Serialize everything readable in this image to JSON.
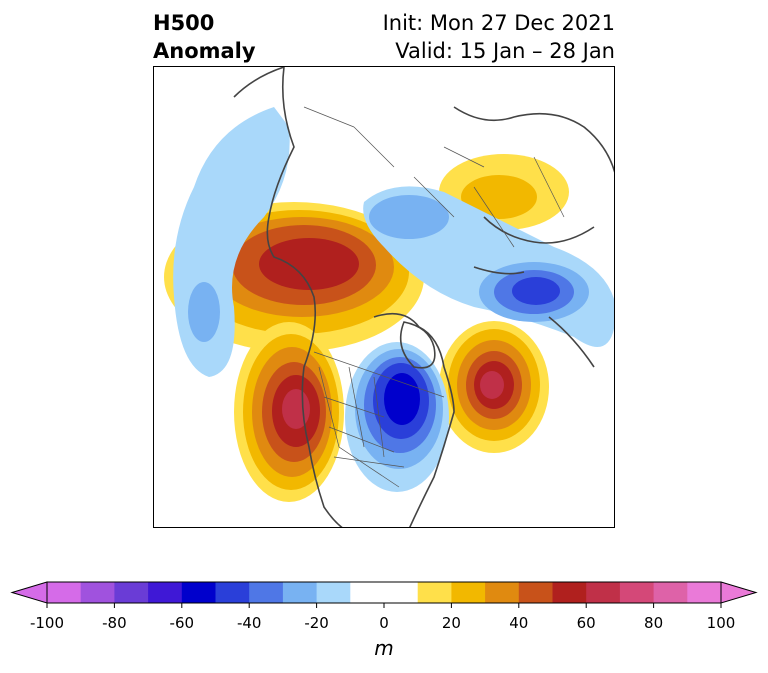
{
  "title": {
    "left_line1": "H500",
    "left_line2": "Anomaly",
    "right_line1": "Init: Mon 27 Dec 2021",
    "right_line2": "Valid: 15 Jan – 28 Jan"
  },
  "colorbar": {
    "unit": "m",
    "ticks": [
      "-100",
      "-80",
      "-60",
      "-40",
      "-20",
      "0",
      "20",
      "40",
      "60",
      "80",
      "100"
    ],
    "range": [
      -100,
      100
    ],
    "step": 10,
    "colors": [
      "#d56be8",
      "#a052de",
      "#6a3cd6",
      "#3f18d6",
      "#0000cc",
      "#2a3fd9",
      "#4f77e6",
      "#78b2f2",
      "#a9d8fa",
      "#ffffff",
      "#ffffff",
      "#ffe04a",
      "#f2b800",
      "#e08a10",
      "#c8521a",
      "#b0201e",
      "#c03048",
      "#d44878",
      "#de62a8",
      "#ea7ad8"
    ]
  },
  "map": {
    "region": "North Atlantic / North America / Arctic",
    "field": "500 hPa geopotential height anomaly"
  }
}
